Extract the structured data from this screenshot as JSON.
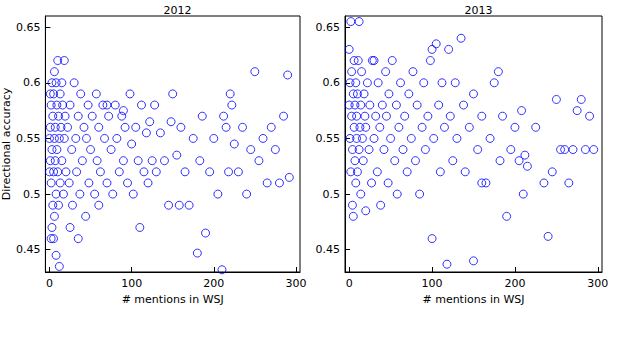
{
  "chart_data": [
    {
      "type": "scatter",
      "title": "2012",
      "x_label": "# mentions in WSJ",
      "y_label": "Directional accuracy",
      "color": "#0000ff",
      "marker": "circle",
      "xlim": [
        -5,
        305
      ],
      "xticks": [
        0,
        100,
        200,
        300
      ],
      "ylim": [
        0.43,
        0.66
      ],
      "yticks": [
        0.45,
        0.5,
        0.55,
        0.6,
        0.65
      ],
      "x": [
        0,
        1,
        1,
        2,
        2,
        3,
        3,
        4,
        4,
        5,
        5,
        6,
        6,
        7,
        7,
        8,
        8,
        9,
        9,
        10,
        10,
        11,
        11,
        12,
        12,
        13,
        13,
        14,
        15,
        15,
        16,
        17,
        18,
        19,
        20,
        2,
        5,
        8,
        0,
        1,
        3,
        6,
        22,
        24,
        25,
        27,
        28,
        30,
        32,
        33,
        35,
        37,
        38,
        40,
        42,
        44,
        45,
        47,
        48,
        50,
        52,
        55,
        57,
        58,
        60,
        62,
        65,
        67,
        70,
        72,
        75,
        77,
        80,
        82,
        85,
        88,
        90,
        92,
        95,
        98,
        100,
        102,
        105,
        108,
        110,
        112,
        115,
        118,
        120,
        122,
        125,
        128,
        130,
        135,
        140,
        145,
        148,
        150,
        155,
        158,
        160,
        165,
        170,
        175,
        180,
        183,
        186,
        190,
        195,
        200,
        205,
        210,
        212,
        215,
        218,
        220,
        222,
        225,
        230,
        235,
        240,
        245,
        250,
        255,
        260,
        265,
        270,
        275,
        280,
        285,
        290,
        292,
        18,
        25,
        35,
        60,
        70,
        90
      ],
      "values": [
        0.55,
        0.56,
        0.53,
        0.58,
        0.51,
        0.6,
        0.54,
        0.49,
        0.57,
        0.52,
        0.59,
        0.55,
        0.48,
        0.56,
        0.53,
        0.6,
        0.5,
        0.54,
        0.58,
        0.62,
        0.52,
        0.57,
        0.49,
        0.435,
        0.55,
        0.59,
        0.51,
        0.56,
        0.53,
        0.6,
        0.58,
        0.5,
        0.55,
        0.57,
        0.52,
        0.46,
        0.46,
        0.445,
        0.52,
        0.59,
        0.47,
        0.61,
        0.56,
        0.51,
        0.58,
        0.54,
        0.49,
        0.6,
        0.55,
        0.52,
        0.57,
        0.5,
        0.59,
        0.53,
        0.56,
        0.48,
        0.55,
        0.58,
        0.51,
        0.54,
        0.57,
        0.5,
        0.59,
        0.53,
        0.56,
        0.52,
        0.58,
        0.55,
        0.51,
        0.57,
        0.54,
        0.5,
        0.58,
        0.55,
        0.52,
        0.57,
        0.53,
        0.56,
        0.51,
        0.59,
        0.545,
        0.5,
        0.56,
        0.53,
        0.47,
        0.58,
        0.52,
        0.555,
        0.51,
        0.565,
        0.53,
        0.58,
        0.52,
        0.555,
        0.53,
        0.49,
        0.565,
        0.59,
        0.535,
        0.49,
        0.56,
        0.52,
        0.49,
        0.55,
        0.447,
        0.53,
        0.57,
        0.465,
        0.52,
        0.55,
        0.5,
        0.432,
        0.57,
        0.56,
        0.52,
        0.59,
        0.58,
        0.545,
        0.52,
        0.56,
        0.5,
        0.54,
        0.61,
        0.53,
        0.55,
        0.51,
        0.56,
        0.54,
        0.51,
        0.57,
        0.607,
        0.515,
        0.62,
        0.47,
        0.46,
        0.49,
        0.58,
        0.575
      ]
    },
    {
      "type": "scatter",
      "title": "2013",
      "x_label": "# mentions in WSJ",
      "color": "#0000ff",
      "marker": "circle",
      "xlim": [
        -5,
        305
      ],
      "xticks": [
        0,
        100,
        200,
        300
      ],
      "ylim": [
        0.43,
        0.66
      ],
      "yticks": [
        0.45,
        0.5,
        0.55,
        0.6,
        0.65
      ],
      "x": [
        0,
        0,
        1,
        1,
        2,
        2,
        3,
        3,
        4,
        4,
        5,
        5,
        6,
        6,
        7,
        7,
        8,
        8,
        9,
        9,
        10,
        10,
        11,
        12,
        12,
        13,
        14,
        14,
        15,
        16,
        17,
        18,
        19,
        20,
        20,
        22,
        24,
        25,
        27,
        28,
        30,
        30,
        32,
        34,
        35,
        37,
        38,
        40,
        42,
        44,
        45,
        47,
        48,
        50,
        52,
        55,
        57,
        58,
        60,
        62,
        65,
        67,
        70,
        72,
        75,
        77,
        80,
        82,
        85,
        88,
        90,
        92,
        95,
        98,
        100,
        100,
        102,
        105,
        108,
        110,
        112,
        115,
        118,
        120,
        122,
        125,
        128,
        130,
        135,
        138,
        140,
        145,
        150,
        155,
        160,
        165,
        170,
        175,
        180,
        182,
        185,
        190,
        195,
        200,
        205,
        208,
        210,
        212,
        215,
        225,
        235,
        240,
        245,
        250,
        255,
        260,
        265,
        270,
        275,
        280,
        285,
        290,
        295,
        150,
        160
      ],
      "values": [
        0.63,
        0.58,
        0.55,
        0.6,
        0.655,
        0.52,
        0.57,
        0.61,
        0.54,
        0.49,
        0.48,
        0.59,
        0.56,
        0.62,
        0.53,
        0.58,
        0.51,
        0.6,
        0.55,
        0.57,
        0.59,
        0.52,
        0.62,
        0.655,
        0.54,
        0.56,
        0.5,
        0.58,
        0.61,
        0.55,
        0.53,
        0.59,
        0.57,
        0.485,
        0.56,
        0.6,
        0.54,
        0.58,
        0.51,
        0.62,
        0.62,
        0.55,
        0.57,
        0.52,
        0.6,
        0.56,
        0.49,
        0.58,
        0.54,
        0.61,
        0.57,
        0.51,
        0.59,
        0.55,
        0.62,
        0.53,
        0.58,
        0.5,
        0.56,
        0.6,
        0.54,
        0.57,
        0.52,
        0.59,
        0.55,
        0.61,
        0.53,
        0.58,
        0.5,
        0.56,
        0.6,
        0.54,
        0.57,
        0.62,
        0.63,
        0.46,
        0.55,
        0.635,
        0.58,
        0.52,
        0.6,
        0.56,
        0.437,
        0.63,
        0.57,
        0.53,
        0.6,
        0.55,
        0.64,
        0.58,
        0.52,
        0.56,
        0.59,
        0.54,
        0.57,
        0.51,
        0.55,
        0.6,
        0.61,
        0.53,
        0.57,
        0.48,
        0.54,
        0.56,
        0.53,
        0.575,
        0.5,
        0.535,
        0.525,
        0.56,
        0.51,
        0.462,
        0.52,
        0.585,
        0.54,
        0.54,
        0.51,
        0.54,
        0.575,
        0.585,
        0.54,
        0.57,
        0.54,
        0.44,
        0.51
      ]
    }
  ]
}
